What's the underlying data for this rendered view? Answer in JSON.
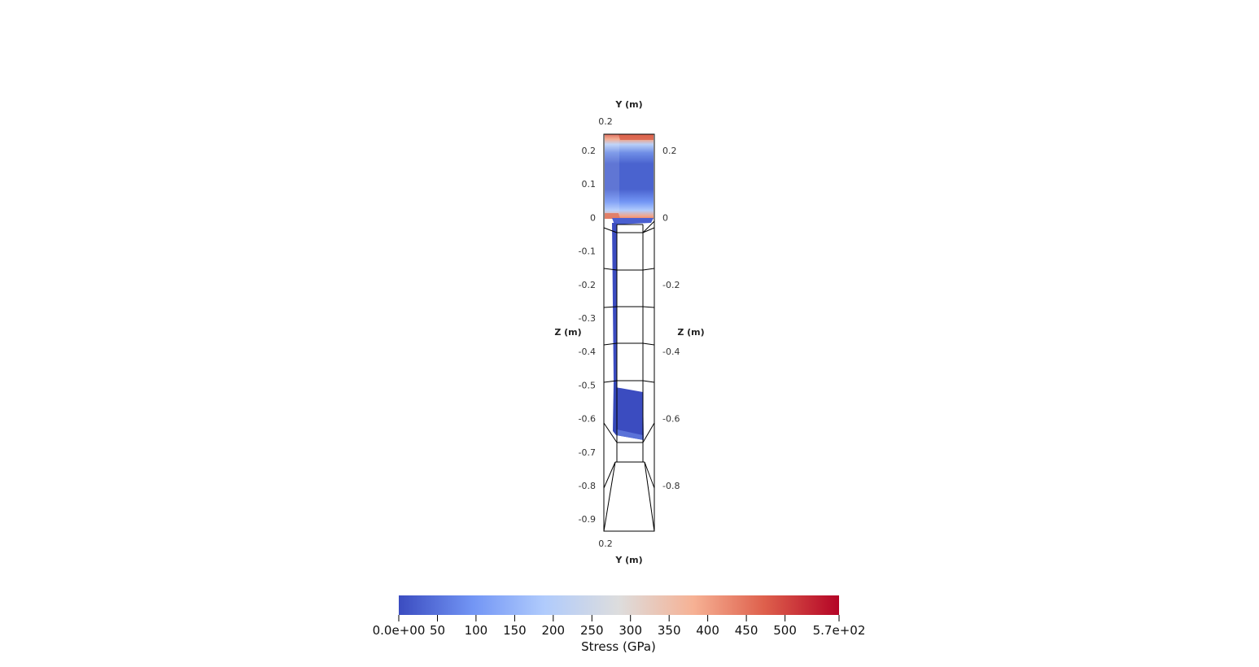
{
  "axes": {
    "top_title": "Y (m)",
    "bottom_title": "Y (m)",
    "left_title": "Z (m)",
    "right_title": "Z (m)",
    "top_tick": "0.2",
    "bottom_tick": "0.2",
    "left_ticks": [
      "0.2",
      "0.1",
      "0",
      "-0.1",
      "-0.2",
      "-0.3",
      "-0.4",
      "-0.5",
      "-0.6",
      "-0.7",
      "-0.8",
      "-0.9"
    ],
    "right_ticks": [
      "0.2",
      "0",
      "-0.2",
      "-0.4",
      "-0.6",
      "-0.8"
    ]
  },
  "colorbar": {
    "title": "Stress (GPa)",
    "min_label": "0.0e+00",
    "max_label": "5.7e+02",
    "ticks": [
      "50",
      "100",
      "150",
      "200",
      "250",
      "300",
      "350",
      "400",
      "450",
      "500"
    ],
    "colors": [
      "#3b4cc0",
      "#7396f5",
      "#b0cbfc",
      "#dddddd",
      "#f6b194",
      "#de604c",
      "#b40426"
    ]
  }
}
